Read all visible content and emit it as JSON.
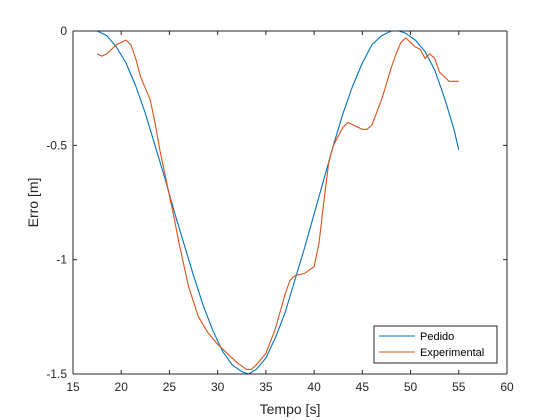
{
  "chart_data": {
    "type": "line",
    "title": "",
    "xlabel": "Tempo [s]",
    "ylabel": "Erro [m]",
    "xlim": [
      15,
      60
    ],
    "ylim": [
      -1.5,
      0
    ],
    "xticks": [
      15,
      20,
      25,
      30,
      35,
      40,
      45,
      50,
      55,
      60
    ],
    "yticks": [
      0,
      -0.5,
      -1,
      -1.5
    ],
    "yticklabels": [
      "0",
      "-0.5",
      "-1",
      "-1.5"
    ],
    "grid": false,
    "legend_position": "bottom-right",
    "series": [
      {
        "name": "Pedido",
        "color": "#0072BD",
        "x": [
          17.5,
          18.5,
          19.5,
          20.5,
          21.5,
          22.5,
          23.5,
          24.5,
          25.5,
          26.5,
          27.5,
          28.5,
          29.5,
          30.5,
          31.5,
          32.5,
          33.2,
          34,
          35,
          36,
          37,
          38,
          39,
          40,
          41,
          42,
          43,
          44,
          45,
          46,
          47,
          48,
          48.8,
          49.5,
          50.5,
          51.5,
          52.5,
          53.5,
          54.5,
          55
        ],
        "y": [
          0,
          -0.02,
          -0.07,
          -0.14,
          -0.24,
          -0.36,
          -0.5,
          -0.64,
          -0.79,
          -0.93,
          -1.07,
          -1.2,
          -1.31,
          -1.4,
          -1.46,
          -1.49,
          -1.5,
          -1.48,
          -1.43,
          -1.34,
          -1.23,
          -1.09,
          -0.95,
          -0.8,
          -0.65,
          -0.5,
          -0.36,
          -0.24,
          -0.14,
          -0.06,
          -0.02,
          0,
          0,
          -0.01,
          -0.04,
          -0.09,
          -0.17,
          -0.29,
          -0.43,
          -0.52
        ]
      },
      {
        "name": "Experimental",
        "color": "#D95319",
        "x": [
          17.5,
          18,
          18.5,
          19,
          19.5,
          20,
          20.5,
          21,
          21.5,
          22,
          22.5,
          23,
          23.5,
          24,
          24.5,
          25,
          25.5,
          26,
          27,
          28,
          29,
          30,
          31,
          32,
          33,
          33.5,
          34,
          35,
          36,
          37,
          37.5,
          38,
          39,
          40,
          40.5,
          41,
          41.5,
          42,
          42.5,
          43,
          43.5,
          44,
          44.5,
          45,
          45.5,
          46,
          47,
          48,
          48.5,
          49,
          49.5,
          50,
          50.5,
          51,
          51.5,
          52,
          52.5,
          53,
          53.5,
          54,
          54.5,
          55
        ],
        "y": [
          -0.1,
          -0.11,
          -0.1,
          -0.08,
          -0.06,
          -0.05,
          -0.04,
          -0.06,
          -0.12,
          -0.2,
          -0.25,
          -0.3,
          -0.4,
          -0.52,
          -0.62,
          -0.72,
          -0.82,
          -0.93,
          -1.12,
          -1.25,
          -1.32,
          -1.37,
          -1.41,
          -1.45,
          -1.48,
          -1.48,
          -1.46,
          -1.41,
          -1.3,
          -1.15,
          -1.09,
          -1.07,
          -1.06,
          -1.03,
          -0.93,
          -0.75,
          -0.58,
          -0.5,
          -0.46,
          -0.42,
          -0.4,
          -0.41,
          -0.42,
          -0.43,
          -0.43,
          -0.41,
          -0.3,
          -0.16,
          -0.1,
          -0.05,
          -0.03,
          -0.05,
          -0.07,
          -0.08,
          -0.12,
          -0.1,
          -0.12,
          -0.18,
          -0.2,
          -0.22,
          -0.22,
          -0.22
        ]
      }
    ]
  }
}
